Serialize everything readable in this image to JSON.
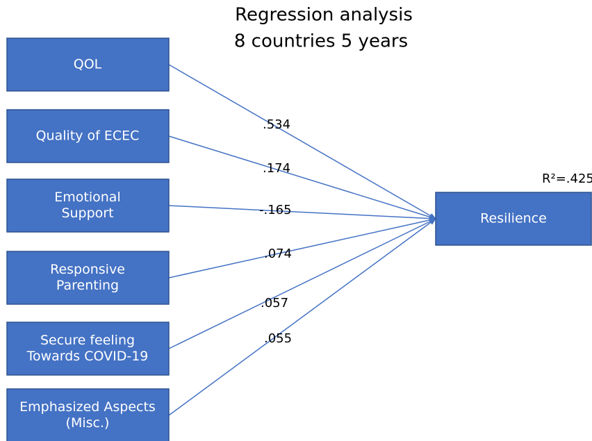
{
  "title": [
    "Regression analysis",
    "8 countries 5 years"
  ],
  "predictors": [
    {
      "label": [
        "QOL"
      ],
      "coefficient": ".534"
    },
    {
      "label": [
        "Quality of ECEC"
      ],
      "coefficient": ".174"
    },
    {
      "label": [
        "Emotional",
        "Support"
      ],
      "coefficient": "-.165"
    },
    {
      "label": [
        "Responsive",
        "Parenting"
      ],
      "coefficient": ".074"
    },
    {
      "label": [
        "Secure feeling",
        "Towards COVID-19"
      ],
      "coefficient": ".057"
    },
    {
      "label": [
        "Emphasized Aspects",
        "(Misc.)"
      ],
      "coefficient": ".055"
    }
  ],
  "outcome": {
    "label": "Resilience",
    "r_squared": "R²=.425"
  }
}
